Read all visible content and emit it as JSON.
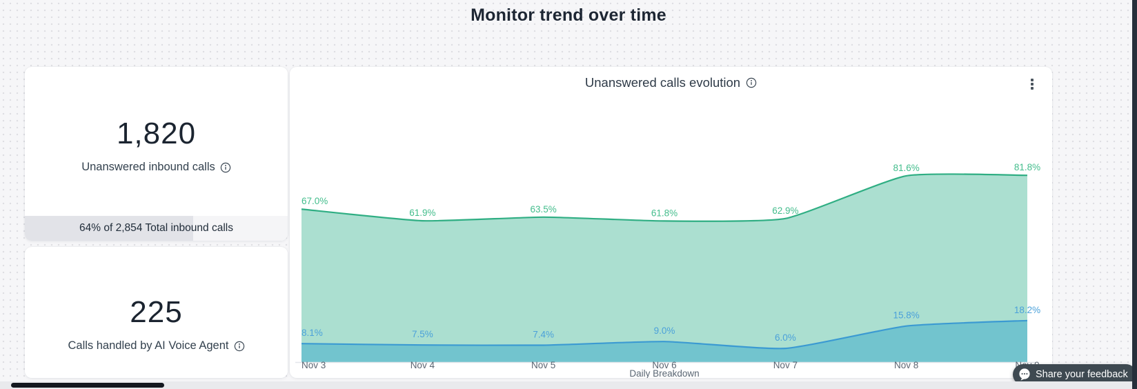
{
  "page": {
    "title": "Monitor trend over time"
  },
  "cards": {
    "unanswered": {
      "value": "1,820",
      "label": "Unanswered inbound calls",
      "info_icon": "info-icon",
      "progress": {
        "text": "64% of 2,854 Total inbound calls",
        "percent": 64
      }
    },
    "ai": {
      "value": "225",
      "label": "Calls handled by AI Voice Agent",
      "info_icon": "info-icon"
    }
  },
  "chart_card": {
    "title": "Unanswered calls evolution",
    "info_icon": "info-icon",
    "menu_icon": "kebab-menu-icon"
  },
  "chart_data": {
    "type": "area",
    "title": "Unanswered calls evolution",
    "categories": [
      "Nov 3",
      "Nov 4",
      "Nov 5",
      "Nov 6",
      "Nov 7",
      "Nov 8",
      "Nov 9"
    ],
    "xlabel": "Daily Breakdown",
    "ylabel": "",
    "ylim": [
      0,
      100
    ],
    "grid": false,
    "legend": "none",
    "series": [
      {
        "name": "unanswered-calls-rate",
        "values": [
          67.0,
          61.9,
          63.5,
          61.8,
          62.9,
          81.6,
          81.8
        ],
        "labels": [
          "67.0%",
          "61.9%",
          "63.5%",
          "61.8%",
          "62.9%",
          "81.6%",
          "81.8%"
        ],
        "line_color": "#2fae83",
        "fill_color": "#abdfd0",
        "label_color": "#43bd8c"
      },
      {
        "name": "ai-handled-calls-rate",
        "values": [
          8.1,
          7.5,
          7.4,
          9.0,
          6.0,
          15.8,
          18.2
        ],
        "labels": [
          "8.1%",
          "7.5%",
          "7.4%",
          "9.0%",
          "6.0%",
          "15.8%",
          "18.2%"
        ],
        "line_color": "#3b9ad2",
        "fill_color": "#72c4ce",
        "label_color": "#4ba1da"
      }
    ],
    "axis_label_color": "#5b6572",
    "axis_title_color": "#5a6673",
    "axis_line_color": "#e3e6ea"
  },
  "feedback": {
    "label": "Share your feedback",
    "bg_color": "#3e4951",
    "icon": "speech-bubble-icon"
  }
}
